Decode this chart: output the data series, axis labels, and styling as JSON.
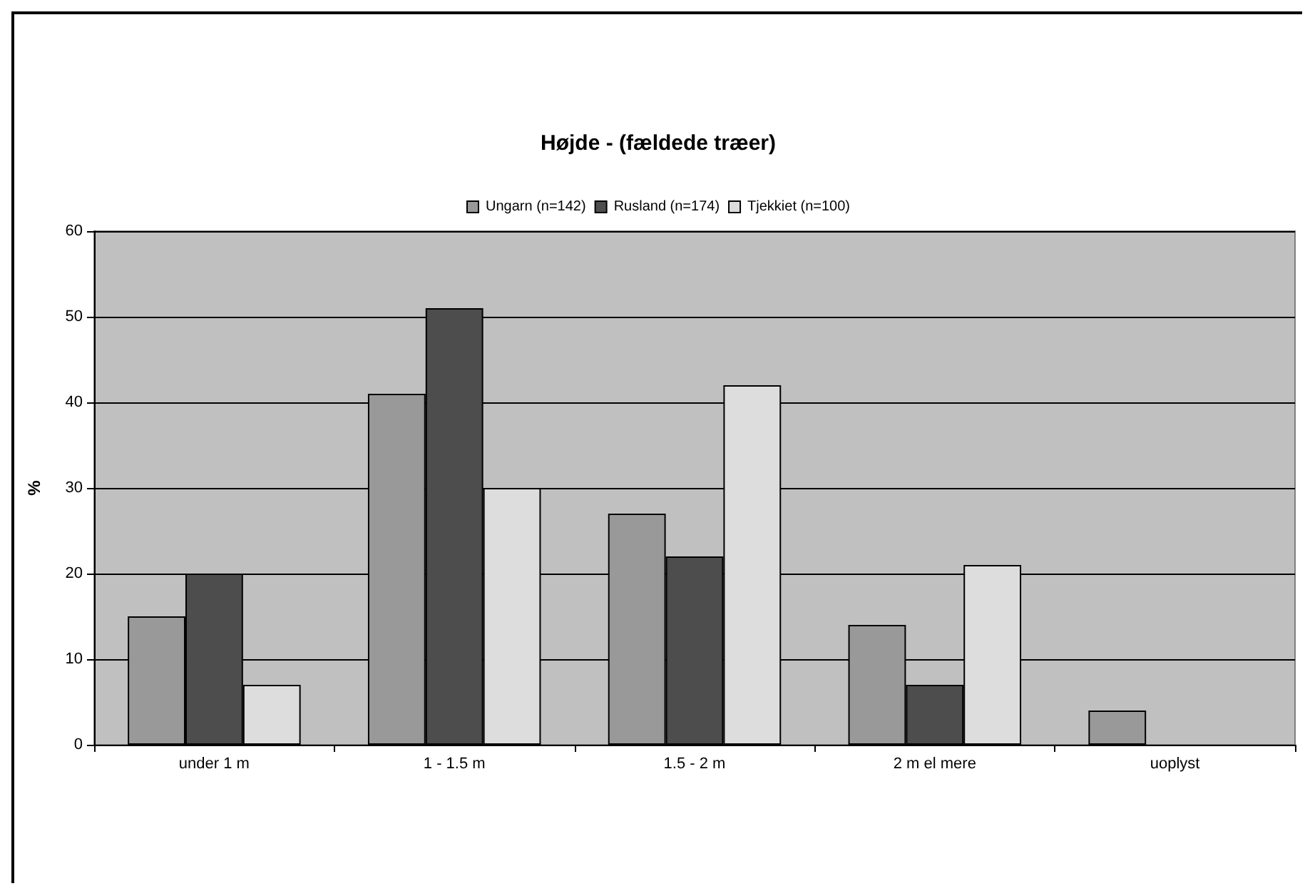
{
  "chart_data": {
    "type": "bar",
    "title": "Højde - (fældede træer)",
    "ylabel": "%",
    "categories": [
      "under 1 m",
      "1 - 1.5 m",
      "1.5 - 2 m",
      "2 m el mere",
      "uoplyst"
    ],
    "series": [
      {
        "name": "Ungarn (n=142)",
        "color": "#999999",
        "values": [
          15,
          41,
          27,
          14,
          4
        ]
      },
      {
        "name": "Rusland (n=174)",
        "color": "#4d4d4d",
        "values": [
          20,
          51,
          22,
          7,
          null
        ]
      },
      {
        "name": "Tjekkiet (n=100)",
        "color": "#dddddd",
        "values": [
          7,
          30,
          42,
          21,
          null
        ]
      }
    ],
    "ylim": [
      0,
      60
    ],
    "yticks": [
      0,
      10,
      20,
      30,
      40,
      50,
      60
    ],
    "grid": "y",
    "legend": "top"
  }
}
